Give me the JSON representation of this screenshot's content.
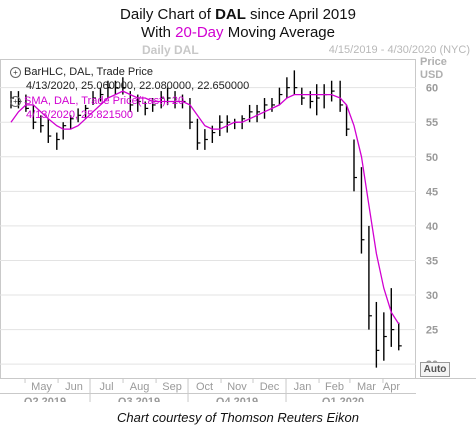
{
  "title": {
    "line1_prefix": "Daily Chart of ",
    "line1_ticker": "DAL",
    "line1_suffix": " since April 2019",
    "line2_prefix": "With ",
    "line2_highlight": "20-Day",
    "line2_suffix": " Moving Average"
  },
  "topbar": {
    "left": "Daily DAL",
    "right": "4/15/2019 - 4/30/2020 (NYC)"
  },
  "legend": {
    "bar_title": "BarHLC, DAL, Trade Price",
    "bar_values": "4/13/2020, 25.060000, 22.080000, 22.650000",
    "sma_title": "SMA, DAL, Trade Price(Last), 20",
    "sma_values": "4/13/2020, 25.821500"
  },
  "axis": {
    "price_label_line1": "Price",
    "price_label_line2": "USD",
    "auto_button": "Auto"
  },
  "footer": "Chart courtesy of Thomson Reuters Eikon",
  "colors": {
    "bars": "#000000",
    "sma": "#d100d1",
    "grid": "#e3e3e3",
    "axis_text": "#9a9a9a"
  },
  "chart_data": {
    "type": "line",
    "ylim": [
      18,
      64
    ],
    "y_ticks": [
      20,
      25,
      30,
      35,
      40,
      45,
      50,
      55,
      60
    ],
    "grid": true,
    "month_labels": [
      "May",
      "Jun",
      "Jul",
      "Aug",
      "Sep",
      "Oct",
      "Nov",
      "Dec",
      "Jan",
      "Feb",
      "Mar",
      "Apr"
    ],
    "quarter_labels": [
      "Q2 2019",
      "Q3 2019",
      "Q4 2019",
      "Q1 2020"
    ],
    "x": [
      "2019-04-15",
      "2019-04-22",
      "2019-04-29",
      "2019-05-06",
      "2019-05-13",
      "2019-05-20",
      "2019-05-28",
      "2019-06-03",
      "2019-06-10",
      "2019-06-17",
      "2019-06-24",
      "2019-07-01",
      "2019-07-08",
      "2019-07-15",
      "2019-07-22",
      "2019-07-29",
      "2019-08-05",
      "2019-08-12",
      "2019-08-19",
      "2019-08-26",
      "2019-09-03",
      "2019-09-09",
      "2019-09-16",
      "2019-09-23",
      "2019-09-30",
      "2019-10-07",
      "2019-10-14",
      "2019-10-21",
      "2019-10-28",
      "2019-11-04",
      "2019-11-11",
      "2019-11-18",
      "2019-11-25",
      "2019-12-02",
      "2019-12-09",
      "2019-12-16",
      "2019-12-23",
      "2019-12-30",
      "2020-01-06",
      "2020-01-13",
      "2020-01-21",
      "2020-01-27",
      "2020-02-03",
      "2020-02-10",
      "2020-02-18",
      "2020-02-24",
      "2020-03-02",
      "2020-03-09",
      "2020-03-16",
      "2020-03-23",
      "2020-03-30",
      "2020-04-06",
      "2020-04-13"
    ],
    "series": [
      {
        "name": "BarHLC, DAL, Trade Price",
        "high": [
          59.5,
          59.5,
          59.0,
          57.5,
          56.0,
          55.5,
          53.5,
          55.0,
          56.0,
          57.0,
          57.5,
          59.5,
          60.0,
          61.0,
          61.0,
          61.5,
          59.5,
          59.0,
          58.0,
          58.5,
          59.5,
          60.0,
          59.5,
          59.0,
          58.5,
          55.5,
          54.0,
          54.5,
          56.0,
          56.0,
          55.5,
          56.0,
          57.5,
          57.5,
          58.5,
          58.5,
          60.0,
          61.5,
          62.5,
          60.0,
          59.5,
          60.5,
          60.5,
          61.0,
          61.0,
          57.5,
          52.5,
          48.5,
          40.0,
          29.0,
          27.5,
          31.0,
          26.0
        ],
        "low": [
          57.0,
          57.0,
          56.5,
          54.0,
          53.5,
          52.0,
          51.0,
          52.5,
          54.0,
          55.0,
          55.5,
          57.5,
          58.0,
          58.5,
          59.0,
          59.0,
          56.5,
          56.5,
          56.0,
          56.5,
          57.0,
          57.5,
          57.0,
          57.0,
          54.0,
          51.0,
          51.0,
          52.0,
          53.0,
          53.5,
          54.0,
          54.0,
          55.0,
          55.0,
          55.5,
          56.5,
          57.5,
          58.5,
          59.0,
          57.5,
          57.0,
          56.0,
          57.0,
          58.0,
          56.5,
          53.0,
          45.0,
          36.0,
          25.0,
          19.5,
          20.5,
          22.5,
          22.0
        ],
        "close": [
          58.5,
          58.0,
          57.0,
          55.0,
          54.5,
          53.0,
          52.5,
          54.5,
          55.5,
          56.0,
          57.0,
          58.5,
          59.0,
          60.0,
          60.0,
          60.0,
          57.5,
          58.0,
          57.0,
          57.5,
          58.5,
          58.5,
          58.0,
          58.0,
          55.0,
          52.0,
          52.5,
          53.5,
          55.0,
          55.0,
          55.0,
          55.5,
          56.5,
          56.5,
          57.5,
          57.5,
          59.0,
          60.0,
          60.0,
          58.5,
          58.0,
          58.5,
          59.0,
          59.5,
          57.5,
          54.0,
          47.0,
          38.0,
          27.0,
          22.0,
          24.0,
          25.0,
          22.65
        ]
      },
      {
        "name": "SMA, DAL, Trade Price(Last), 20",
        "values": [
          55.0,
          56.5,
          57.5,
          57.5,
          56.5,
          55.5,
          54.5,
          54.0,
          54.0,
          54.5,
          55.5,
          56.5,
          57.5,
          58.5,
          59.0,
          59.5,
          59.0,
          58.5,
          58.5,
          58.0,
          58.0,
          58.0,
          58.0,
          58.0,
          57.5,
          56.0,
          54.5,
          54.0,
          54.0,
          54.5,
          55.0,
          55.0,
          55.5,
          56.0,
          56.5,
          57.0,
          57.5,
          58.5,
          59.0,
          59.0,
          59.0,
          59.0,
          59.0,
          59.0,
          58.5,
          57.5,
          54.5,
          50.0,
          43.0,
          36.0,
          31.0,
          27.5,
          25.82
        ]
      }
    ]
  }
}
